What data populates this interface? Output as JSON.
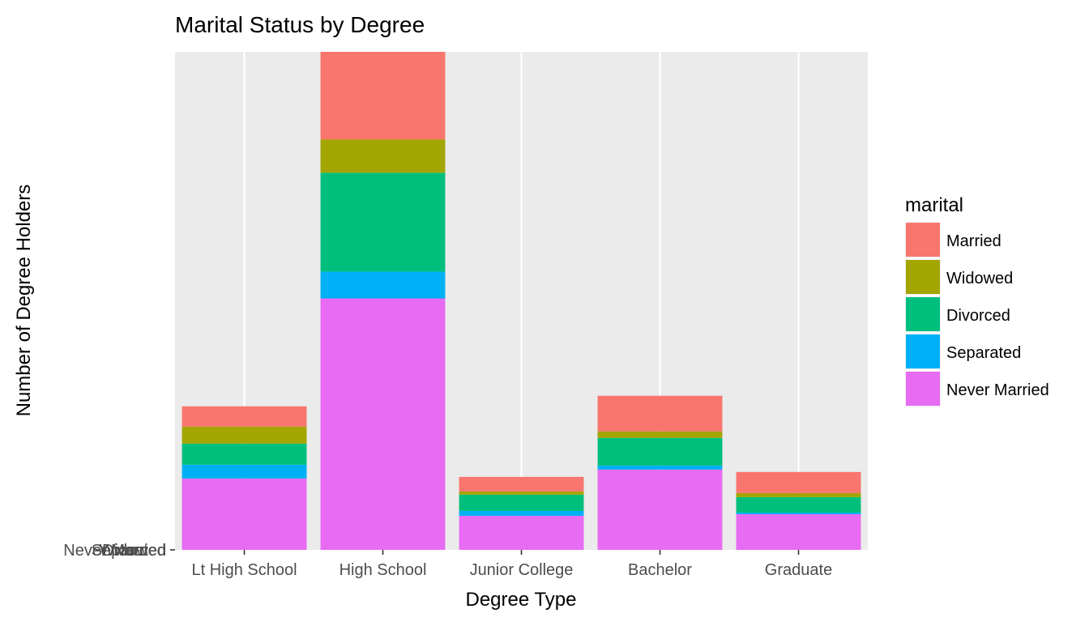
{
  "chart_data": {
    "type": "bar",
    "stacked": true,
    "title": "Marital Status by Degree",
    "xlabel": "Degree Type",
    "ylabel": "Number of Degree Holders",
    "categories": [
      "Lt High School",
      "High School",
      "Junior College",
      "Bachelor",
      "Graduate"
    ],
    "y_tick_labels": [
      "Never Married",
      "Separated",
      "Divorced",
      "Widowed",
      "Married"
    ],
    "series": [
      {
        "name": "Never Married",
        "color": "#E76BF3",
        "values": [
          88,
          310,
          42,
          99,
          44
        ]
      },
      {
        "name": "Separated",
        "color": "#00B0F6",
        "values": [
          17,
          33,
          6,
          5,
          2
        ]
      },
      {
        "name": "Divorced",
        "color": "#00BF7D",
        "values": [
          26,
          122,
          20,
          34,
          19
        ]
      },
      {
        "name": "Widowed",
        "color": "#A3A500",
        "values": [
          21,
          41,
          4,
          8,
          5
        ]
      },
      {
        "name": "Married",
        "color": "#F8766D",
        "values": [
          25,
          108,
          18,
          44,
          26
        ]
      }
    ],
    "ylim": [
      0,
      614
    ],
    "grid": true,
    "legend": {
      "title": "marital",
      "position": "right",
      "entries": [
        "Married",
        "Widowed",
        "Divorced",
        "Separated",
        "Never Married"
      ]
    }
  }
}
